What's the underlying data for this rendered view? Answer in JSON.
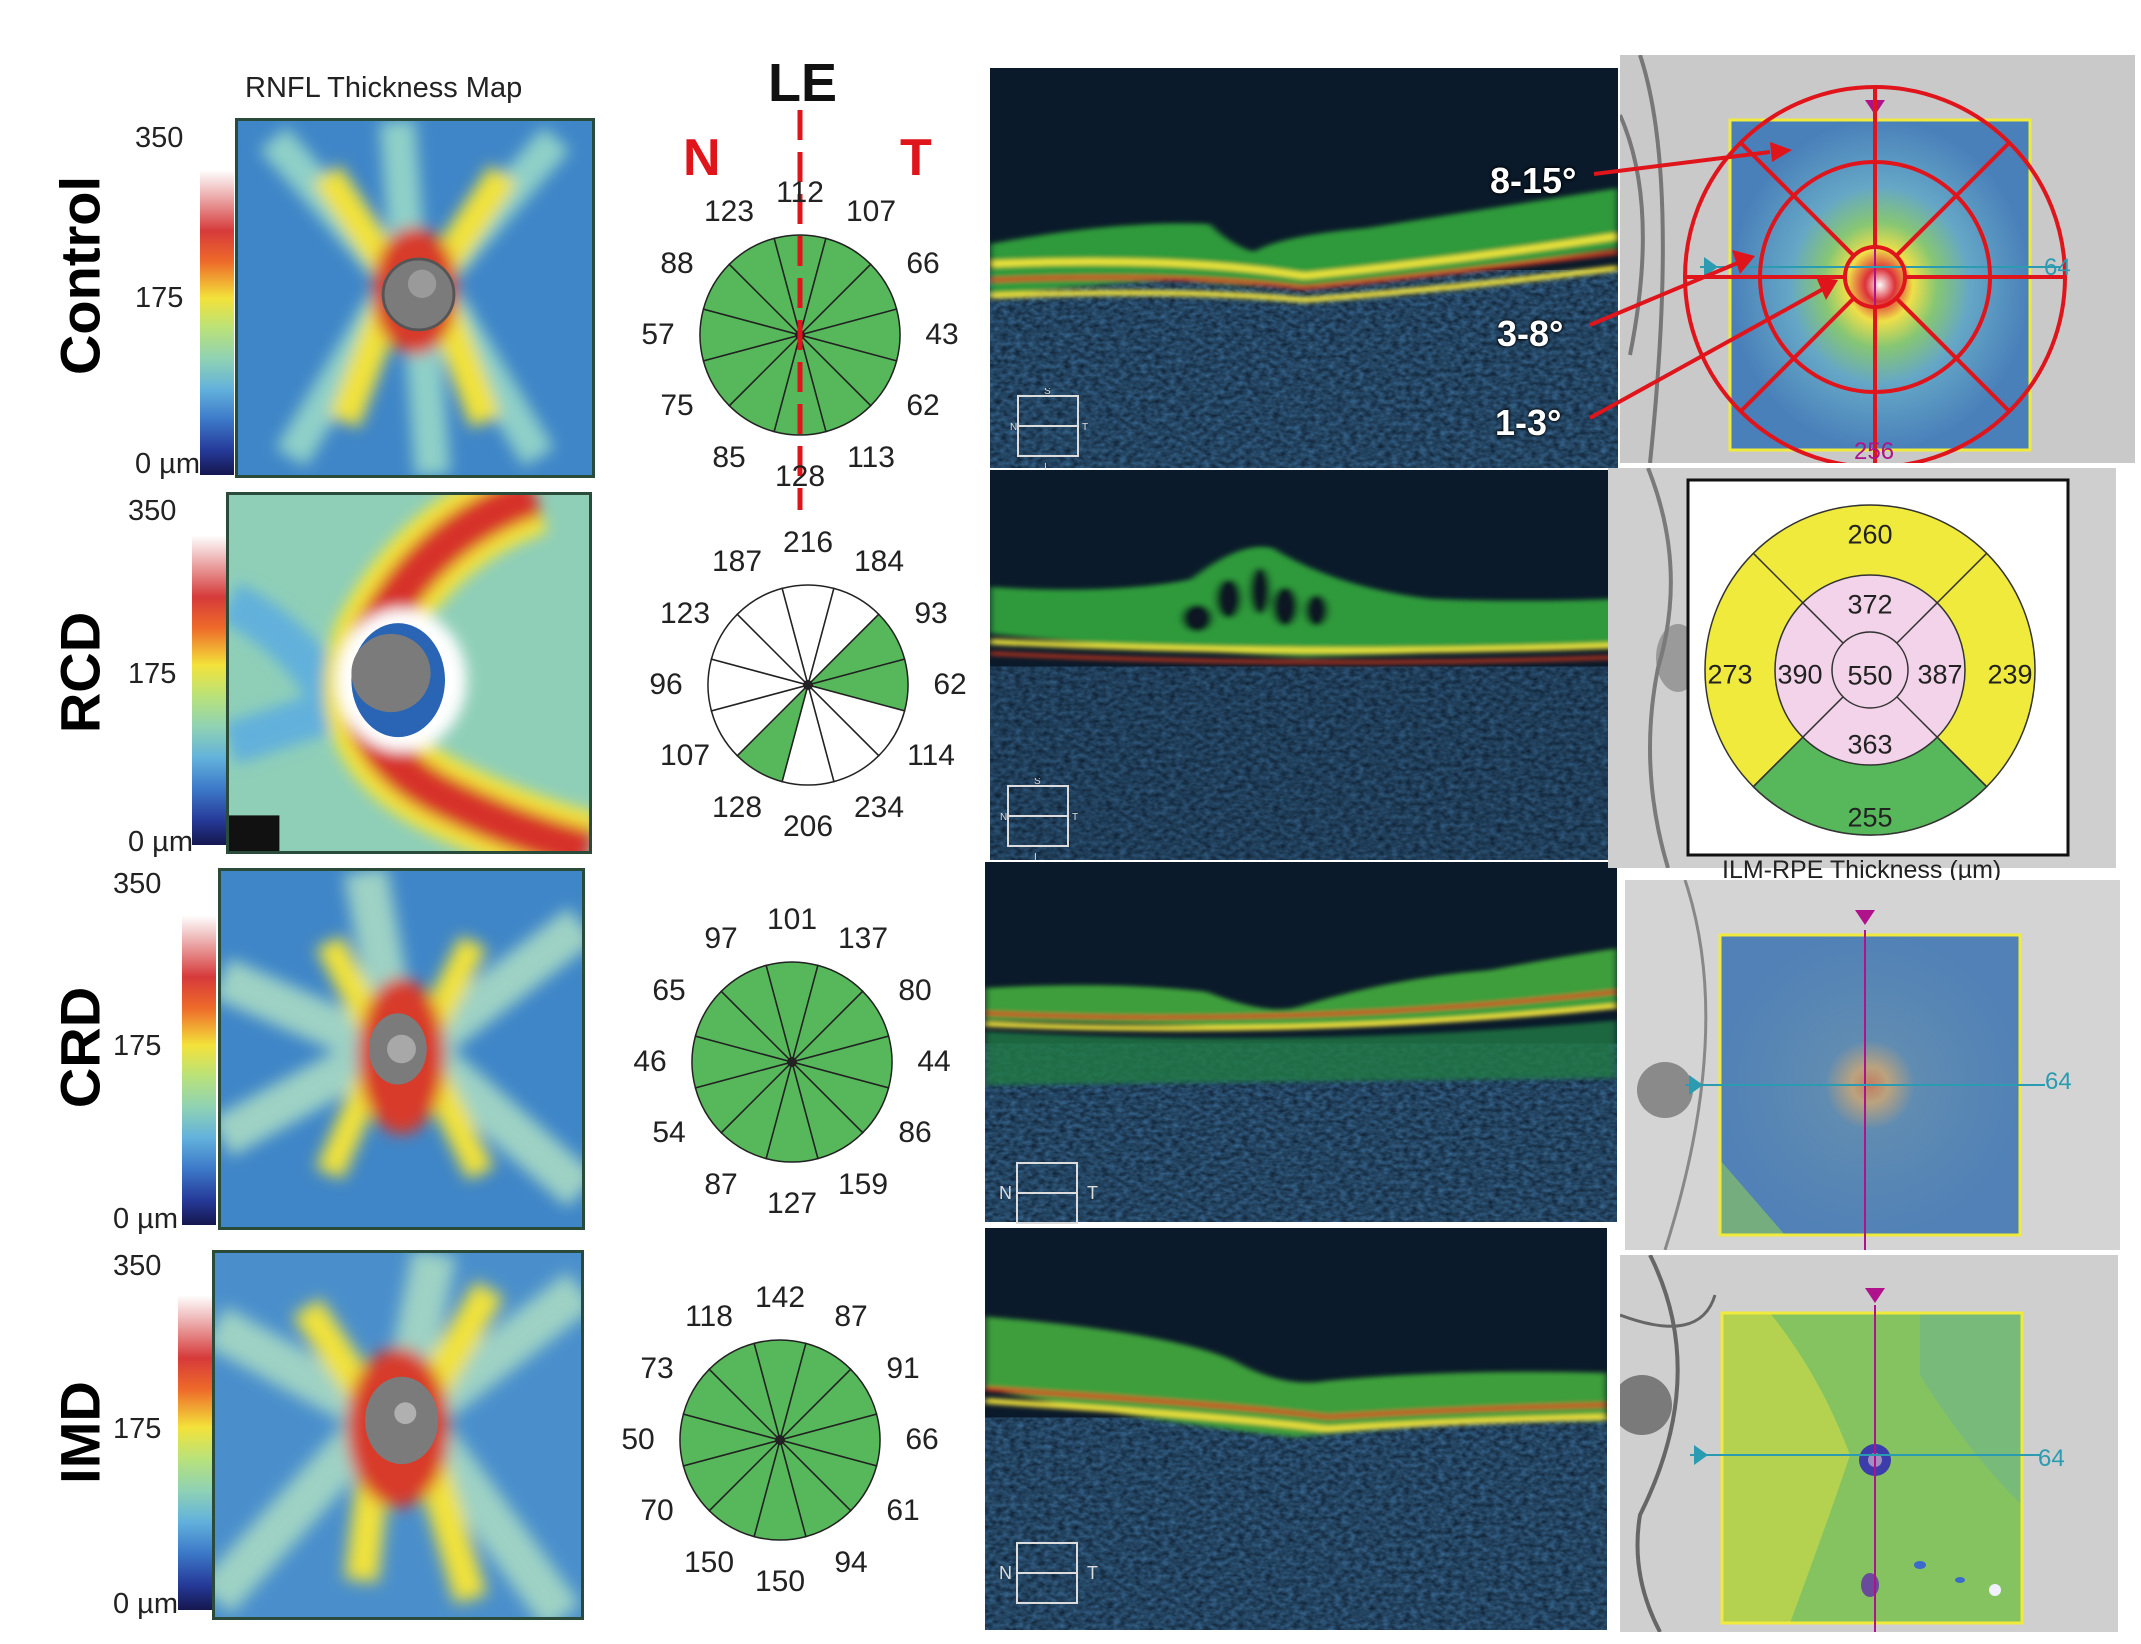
{
  "header": {
    "rnfl_title": "RNFL Thickness Map",
    "eye": "LE",
    "nasal": "N",
    "temporal": "T"
  },
  "scale": {
    "max": "350",
    "mid": "175",
    "min": "0 µm"
  },
  "rows": [
    {
      "label": "Control",
      "sectors": [
        "112",
        "107",
        "66",
        "43",
        "62",
        "113",
        "128",
        "85",
        "75",
        "57",
        "88",
        "123"
      ],
      "filled": [
        0,
        1,
        2,
        3,
        4,
        5,
        6,
        7,
        8,
        9,
        10,
        11
      ]
    },
    {
      "label": "RCD",
      "sectors": [
        "216",
        "184",
        "93",
        "62",
        "114",
        "234",
        "206",
        "128",
        "107",
        "96",
        "123",
        "187"
      ],
      "filled": [
        2,
        3,
        7
      ]
    },
    {
      "label": "CRD",
      "sectors": [
        "101",
        "137",
        "80",
        "44",
        "86",
        "159",
        "127",
        "87",
        "54",
        "46",
        "65",
        "97"
      ],
      "filled": [
        0,
        1,
        2,
        3,
        4,
        5,
        6,
        7,
        8,
        9,
        10,
        11
      ]
    },
    {
      "label": "IMD",
      "sectors": [
        "142",
        "87",
        "91",
        "66",
        "61",
        "94",
        "150",
        "150",
        "70",
        "50",
        "73",
        "118"
      ],
      "filled": [
        0,
        1,
        2,
        3,
        4,
        5,
        6,
        7,
        8,
        9,
        10,
        11
      ]
    }
  ],
  "annotations": {
    "outer": "8-15°",
    "middle": "3-8°",
    "inner": "1-3°"
  },
  "ilm_rpe": {
    "title": "ILM-RPE Thickness (µm)",
    "outer_top": "260",
    "outer_left": "273",
    "outer_right": "239",
    "outer_bottom": "255",
    "inner_top": "372",
    "inner_left": "390",
    "inner_right": "387",
    "inner_bottom": "363",
    "center": "550"
  },
  "fundus_axis": {
    "right": "64",
    "bottom": "256"
  },
  "oct_box": {
    "s": "S",
    "i": "I",
    "n": "N",
    "t": "T"
  },
  "colors": {
    "sector_fill": "#56b85a",
    "red": "#e0141b",
    "yellow": "#f0ea3c",
    "pink": "#f3d3ea",
    "magenta": "#b0128c"
  }
}
